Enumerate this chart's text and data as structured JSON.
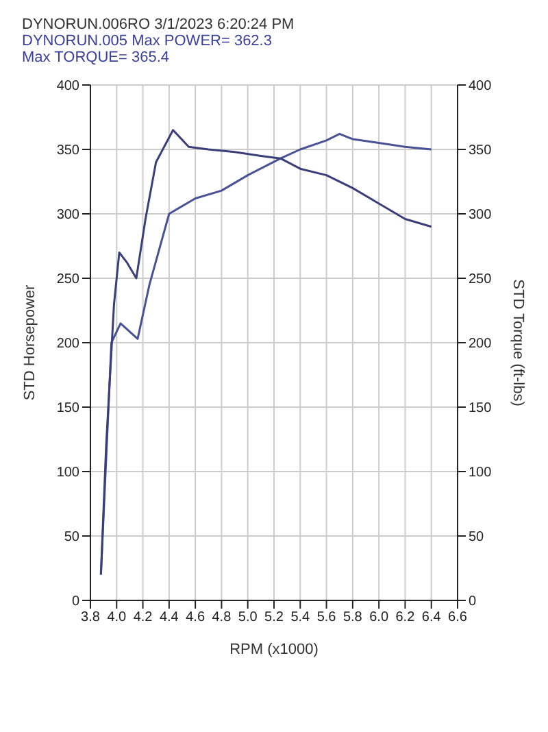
{
  "chart_data": {
    "type": "line",
    "xlabel": "RPM (x1000)",
    "ylabel": "STD Horsepower",
    "y2label": "STD Torque (ft-lbs)",
    "annotations": [
      "DYNORUN.006RO  3/1/2023 6:20:24 PM",
      "DYNORUN.005  Max POWER= 362.3",
      "Max TORQUE= 365.4"
    ],
    "xlim": [
      3.8,
      6.6
    ],
    "xticks": [
      3.8,
      {
        "value": 4,
        "label": "4.0"
      },
      4.2,
      4.4,
      4.6,
      4.8,
      {
        "value": 5,
        "label": "5.0"
      },
      5.2,
      5.4,
      5.6,
      5.8,
      {
        "value": 6,
        "label": "6.0"
      },
      6.2,
      6.4,
      6.6
    ],
    "ylim": [
      0,
      400
    ],
    "yticks": [
      0,
      50,
      100,
      150,
      200,
      250,
      300,
      350,
      400
    ],
    "y2lim": [
      0,
      400
    ],
    "y2ticks": [
      0,
      50,
      100,
      150,
      200,
      250,
      300,
      350,
      400
    ],
    "grid": true,
    "marker": "none",
    "line_style": "solid",
    "series": [
      {
        "color": "#4a5296",
        "x": [
          3.88,
          3.92,
          3.96,
          4.03,
          4.16,
          4.25,
          4.4,
          4.6,
          4.8,
          5.0,
          5.25,
          5.4,
          5.6,
          5.7,
          5.8,
          6.0,
          6.2,
          6.4
        ],
        "values": [
          20,
          110,
          200,
          215,
          203,
          245,
          300,
          312,
          318,
          330,
          343,
          350,
          357,
          362,
          358,
          355,
          352,
          350
        ]
      },
      {
        "color": "#3a3f7a",
        "axis": "y2",
        "x": [
          3.88,
          3.92,
          3.98,
          4.02,
          4.08,
          4.15,
          4.22,
          4.3,
          4.43,
          4.55,
          4.7,
          4.9,
          5.1,
          5.25,
          5.4,
          5.6,
          5.8,
          6.0,
          6.2,
          6.4
        ],
        "values": [
          20,
          120,
          230,
          270,
          262,
          250,
          296,
          340,
          365,
          352,
          350,
          348,
          345,
          343,
          335,
          330,
          320,
          308,
          296,
          290
        ]
      }
    ]
  }
}
